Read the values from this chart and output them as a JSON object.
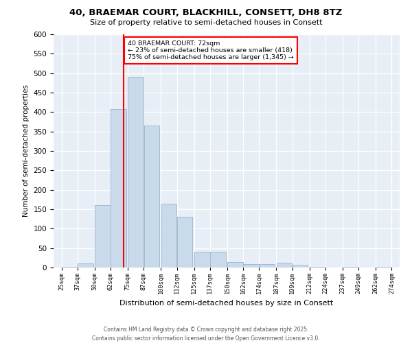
{
  "title_line1": "40, BRAEMAR COURT, BLACKHILL, CONSETT, DH8 8TZ",
  "title_line2": "Size of property relative to semi-detached houses in Consett",
  "xlabel": "Distribution of semi-detached houses by size in Consett",
  "ylabel": "Number of semi-detached properties",
  "bar_color": "#c9daea",
  "bar_edge_color": "#a0bcd4",
  "plot_bg_color": "#e8eef5",
  "red_line_x": 72,
  "annotation_title": "40 BRAEMAR COURT: 72sqm",
  "annotation_line1": "← 23% of semi-detached houses are smaller (418)",
  "annotation_line2": "75% of semi-detached houses are larger (1,345) →",
  "footer_line1": "Contains HM Land Registry data © Crown copyright and database right 2025.",
  "footer_line2": "Contains public sector information licensed under the Open Government Licence v3.0.",
  "bin_left_edges": [
    25,
    37,
    50,
    62,
    75,
    87,
    100,
    112,
    125,
    137,
    150,
    162,
    174,
    187,
    199,
    212,
    224,
    237,
    249,
    262
  ],
  "bin_labels": [
    "25sqm",
    "37sqm",
    "50sqm",
    "62sqm",
    "75sqm",
    "87sqm",
    "100sqm",
    "112sqm",
    "125sqm",
    "137sqm",
    "150sqm",
    "162sqm",
    "174sqm",
    "187sqm",
    "199sqm",
    "212sqm",
    "224sqm",
    "237sqm",
    "249sqm",
    "262sqm",
    "274sqm"
  ],
  "counts": [
    2,
    10,
    160,
    408,
    490,
    365,
    165,
    130,
    40,
    40,
    15,
    8,
    8,
    12,
    7,
    2,
    0,
    2,
    0,
    2
  ],
  "ylim": [
    0,
    600
  ],
  "yticks": [
    0,
    50,
    100,
    150,
    200,
    250,
    300,
    350,
    400,
    450,
    500,
    550,
    600
  ],
  "xlim_left": 19,
  "xlim_right": 280
}
